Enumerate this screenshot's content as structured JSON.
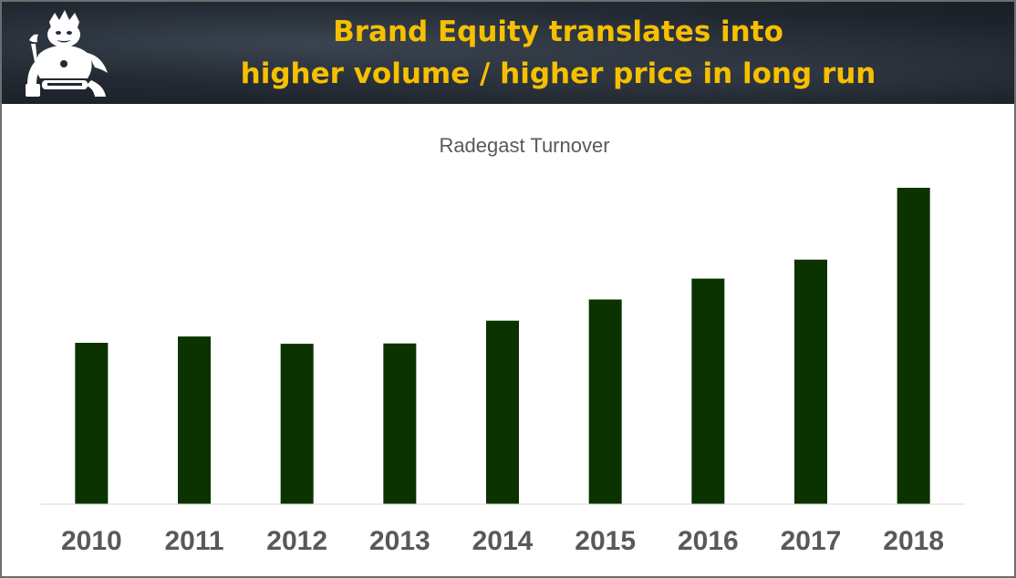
{
  "header": {
    "title_line1": "Brand Equity translates into",
    "title_line2": "higher volume / higher price in long run",
    "title_color": "#f6c000",
    "logo_icon": "radegast-deity-logo-icon"
  },
  "chart_data": {
    "type": "bar",
    "title": "Radegast Turnover",
    "xlabel": "",
    "ylabel": "",
    "categories": [
      "2010",
      "2011",
      "2012",
      "2013",
      "2014",
      "2015",
      "2016",
      "2017",
      "2018"
    ],
    "values": [
      51,
      53,
      50.7,
      50.8,
      58,
      64.7,
      71.3,
      77.3,
      100
    ],
    "ylim": [
      0,
      100
    ],
    "grid": false,
    "legend": "none",
    "bar_color": "#0b3300"
  }
}
